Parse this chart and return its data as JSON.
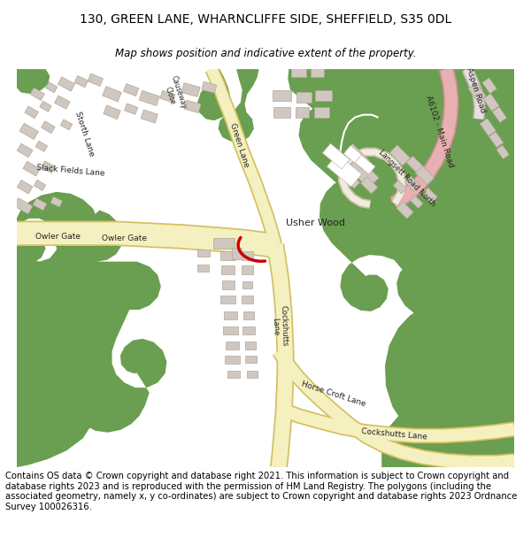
{
  "title": "130, GREEN LANE, WHARNCLIFFE SIDE, SHEFFIELD, S35 0DL",
  "subtitle": "Map shows position and indicative extent of the property.",
  "footer": "Contains OS data © Crown copyright and database right 2021. This information is subject to Crown copyright and database rights 2023 and is reproduced with the permission of HM Land Registry. The polygons (including the associated geometry, namely x, y co-ordinates) are subject to Crown copyright and database rights 2023 Ordnance Survey 100026316.",
  "green_color": "#6a9e50",
  "road_fill": "#f5f0c0",
  "road_border": "#d4c060",
  "pink_road": "#e8b0b0",
  "pink_road_border": "#c89090",
  "building_color": "#d0c8c0",
  "building_border": "#b0a898",
  "red_marker": "#cc0000",
  "white_path": "#ffffff",
  "title_fontsize": 10,
  "subtitle_fontsize": 8.5,
  "footer_fontsize": 7.2
}
